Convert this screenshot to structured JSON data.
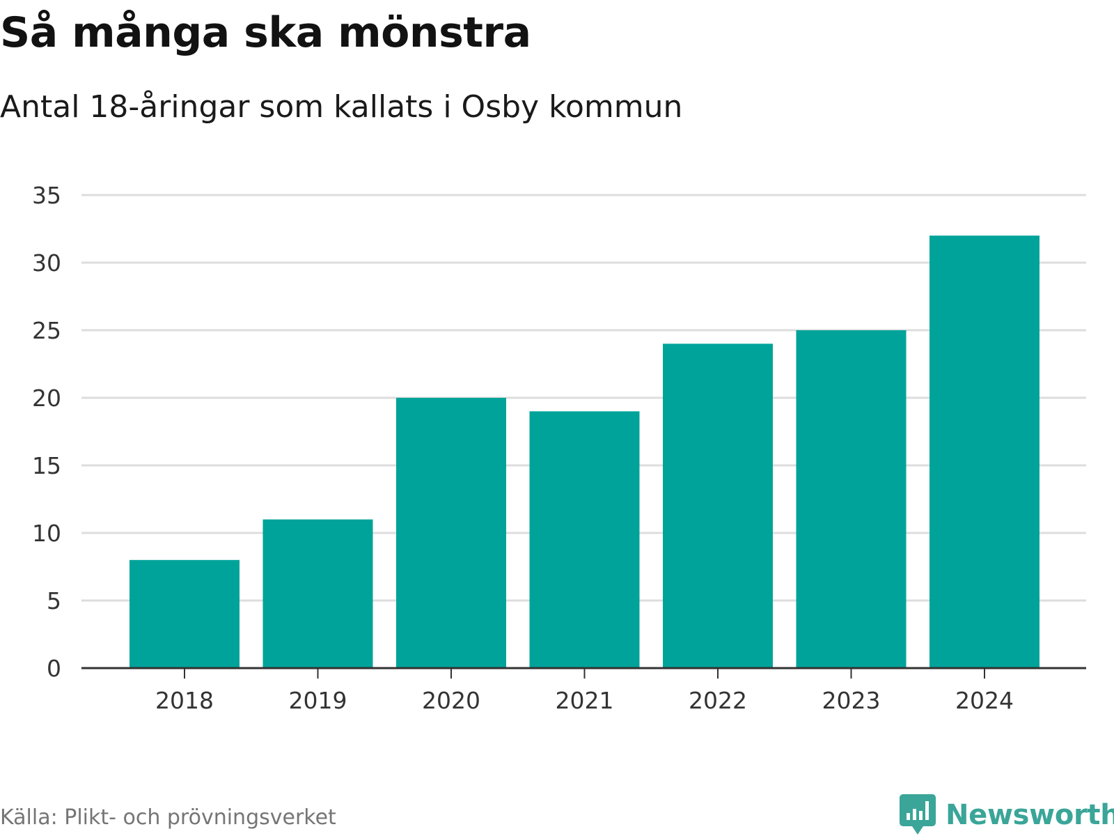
{
  "title": "Så många ska mönstra",
  "subtitle": "Antal 18-åringar som kallats i Osby kommun",
  "source": "Källa: Plikt- och prövningsverket",
  "brand": {
    "name": "Newsworthy",
    "icon": "chart-bubble-icon",
    "color": "#3aa598"
  },
  "colors": {
    "bar": "#00a39a",
    "grid": "#dddddd",
    "axis": "#333333"
  },
  "chart_data": {
    "type": "bar",
    "categories": [
      "2018",
      "2019",
      "2020",
      "2021",
      "2022",
      "2023",
      "2024"
    ],
    "values": [
      8,
      11,
      20,
      19,
      24,
      25,
      32
    ],
    "title": "Så många ska mönstra",
    "subtitle": "Antal 18-åringar som kallats i Osby kommun",
    "xlabel": "",
    "ylabel": "",
    "ylim": [
      0,
      35
    ],
    "yticks": [
      0,
      5,
      10,
      15,
      20,
      25,
      30,
      35
    ],
    "grid": true,
    "legend": "none"
  }
}
